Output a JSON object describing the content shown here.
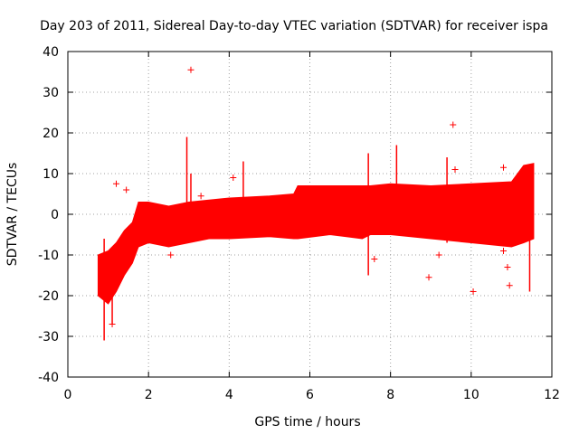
{
  "chart_data": {
    "type": "scatter",
    "title": "Day 203 of 2011, Sidereal Day-to-day VTEC variation (SDTVAR) for receiver ispa",
    "xlabel": "GPS time / hours",
    "ylabel": "SDTVAR / TECUs",
    "xlim": [
      0,
      12
    ],
    "ylim": [
      -40,
      40
    ],
    "xticks": [
      "0",
      "2",
      "4",
      "6",
      "8",
      "10",
      "12"
    ],
    "yticks": [
      "40",
      "30",
      "20",
      "10",
      "0",
      "-10",
      "-20",
      "-30",
      "-40"
    ],
    "grid": true,
    "marker": "+",
    "color": "#ff0000",
    "band": [
      {
        "x": 0.75,
        "low": -20,
        "high": -10
      },
      {
        "x": 1.0,
        "low": -22,
        "high": -9
      },
      {
        "x": 1.2,
        "low": -19,
        "high": -7
      },
      {
        "x": 1.4,
        "low": -15,
        "high": -4
      },
      {
        "x": 1.6,
        "low": -12,
        "high": -2
      },
      {
        "x": 1.75,
        "low": -8,
        "high": 3
      },
      {
        "x": 2.0,
        "low": -7,
        "high": 3
      },
      {
        "x": 2.5,
        "low": -8,
        "high": 2
      },
      {
        "x": 3.0,
        "low": -7,
        "high": 3
      },
      {
        "x": 3.5,
        "low": -6,
        "high": 3.5
      },
      {
        "x": 4.0,
        "low": -6,
        "high": 4
      },
      {
        "x": 5.0,
        "low": -5.5,
        "high": 4.5
      },
      {
        "x": 5.6,
        "low": -6,
        "high": 5
      },
      {
        "x": 5.7,
        "low": -6,
        "high": 7
      },
      {
        "x": 6.5,
        "low": -5,
        "high": 7
      },
      {
        "x": 7.3,
        "low": -6,
        "high": 7
      },
      {
        "x": 7.5,
        "low": -5,
        "high": 7
      },
      {
        "x": 8.0,
        "low": -5,
        "high": 7.5
      },
      {
        "x": 9.0,
        "low": -6,
        "high": 7
      },
      {
        "x": 10.0,
        "low": -7,
        "high": 7.5
      },
      {
        "x": 11.0,
        "low": -8,
        "high": 8
      },
      {
        "x": 11.3,
        "low": -7,
        "high": 12
      },
      {
        "x": 11.55,
        "low": -6,
        "high": 12.5
      }
    ],
    "spikes": [
      {
        "x": 0.9,
        "low": -31,
        "high": -6
      },
      {
        "x": 1.1,
        "low": -27,
        "high": -10
      },
      {
        "x": 2.95,
        "low": -2,
        "high": 19
      },
      {
        "x": 3.05,
        "low": -2,
        "high": 10
      },
      {
        "x": 4.35,
        "low": -2,
        "high": 13
      },
      {
        "x": 7.45,
        "low": -15,
        "high": 15
      },
      {
        "x": 8.15,
        "low": -1,
        "high": 17
      },
      {
        "x": 9.4,
        "low": -7,
        "high": 14
      },
      {
        "x": 11.45,
        "low": -19,
        "high": 10
      }
    ],
    "points": [
      {
        "x": 3.05,
        "y": 35.5
      },
      {
        "x": 9.55,
        "y": 22
      },
      {
        "x": 1.2,
        "y": 7.5
      },
      {
        "x": 1.45,
        "y": 6
      },
      {
        "x": 1.1,
        "y": -27
      },
      {
        "x": 2.55,
        "y": -10
      },
      {
        "x": 3.3,
        "y": 4.5
      },
      {
        "x": 4.1,
        "y": 9
      },
      {
        "x": 9.6,
        "y": 11
      },
      {
        "x": 10.8,
        "y": 11.5
      },
      {
        "x": 8.95,
        "y": -15.5
      },
      {
        "x": 10.05,
        "y": -19
      },
      {
        "x": 10.95,
        "y": -17.5
      },
      {
        "x": 10.9,
        "y": -13
      },
      {
        "x": 7.6,
        "y": -11
      },
      {
        "x": 9.2,
        "y": -10
      },
      {
        "x": 10.8,
        "y": -9
      }
    ]
  }
}
